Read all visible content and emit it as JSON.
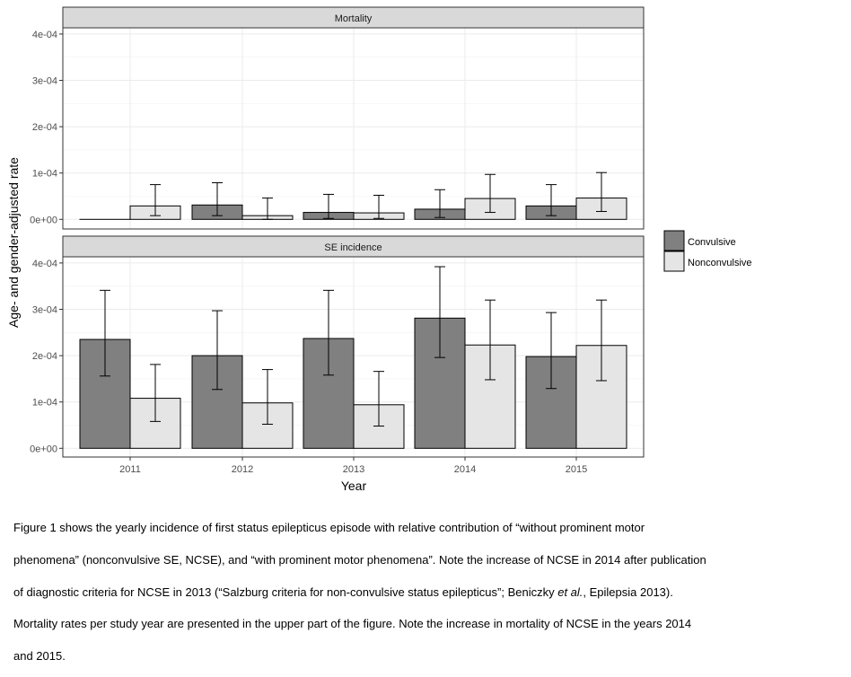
{
  "chart_data": [
    {
      "type": "bar",
      "panel": "Mortality",
      "categories": [
        "2011",
        "2012",
        "2013",
        "2014",
        "2015"
      ],
      "series": [
        {
          "name": "Convulsive",
          "values": [
            0,
            3.1e-05,
            1.5e-05,
            2.2e-05,
            2.9e-05
          ],
          "lower": [
            null,
            8e-06,
            2e-06,
            4e-06,
            8e-06
          ],
          "upper": [
            null,
            7.9e-05,
            5.4e-05,
            6.4e-05,
            7.5e-05
          ]
        },
        {
          "name": "Nonconvulsive",
          "values": [
            2.9e-05,
            8e-06,
            1.4e-05,
            4.5e-05,
            4.6e-05
          ],
          "lower": [
            8e-06,
            0.0,
            2e-06,
            1.5e-05,
            1.7e-05
          ],
          "upper": [
            7.5e-05,
            4.6e-05,
            5.2e-05,
            9.7e-05,
            0.000101
          ]
        }
      ],
      "yticks": [
        "0e+00",
        "1e-04",
        "2e-04",
        "3e-04",
        "4e-04"
      ],
      "ylim": [
        0,
        0.0004
      ]
    },
    {
      "type": "bar",
      "panel": "SE incidence",
      "categories": [
        "2011",
        "2012",
        "2013",
        "2014",
        "2015"
      ],
      "series": [
        {
          "name": "Convulsive",
          "values": [
            0.000235,
            0.0002,
            0.000237,
            0.000281,
            0.000198
          ],
          "lower": [
            0.000156,
            0.000127,
            0.000158,
            0.000196,
            0.000129
          ],
          "upper": [
            0.000341,
            0.000297,
            0.000341,
            0.000392,
            0.000293
          ]
        },
        {
          "name": "Nonconvulsive",
          "values": [
            0.000108,
            9.8e-05,
            9.4e-05,
            0.000223,
            0.000222
          ],
          "lower": [
            5.8e-05,
            5.2e-05,
            4.8e-05,
            0.000148,
            0.000146
          ],
          "upper": [
            0.000181,
            0.00017,
            0.000166,
            0.00032,
            0.00032
          ]
        }
      ],
      "yticks": [
        "0e+00",
        "1e-04",
        "2e-04",
        "3e-04",
        "4e-04"
      ],
      "ylim": [
        0,
        0.0004
      ]
    }
  ],
  "axes": {
    "xlabel": "Year",
    "ylabel": "Age- and gender-adjusted rate"
  },
  "legend": {
    "placement": "right",
    "items": [
      {
        "label": "Convulsive",
        "color": "#808080"
      },
      {
        "label": "Nonconvulsive",
        "color": "#e5e5e5"
      }
    ]
  },
  "caption": {
    "line1": "Figure 1 shows the yearly incidence of first status epilepticus episode with relative contribution of “without prominent motor",
    "line2": "phenomena” (nonconvulsive SE, NCSE), and “with prominent motor phenomena”. Note the increase of NCSE in 2014 after publication",
    "line3a": "of diagnostic criteria for NCSE in 2013 (“Salzburg criteria for non-convulsive status epilepticus”; Beniczky ",
    "line3b": "et al.",
    "line3c": ", Epilepsia 2013).",
    "line4": "Mortality rates per study year are presented in the upper part of the figure. Note the increase in mortality of NCSE in the years 2014",
    "line5": "and 2015."
  }
}
